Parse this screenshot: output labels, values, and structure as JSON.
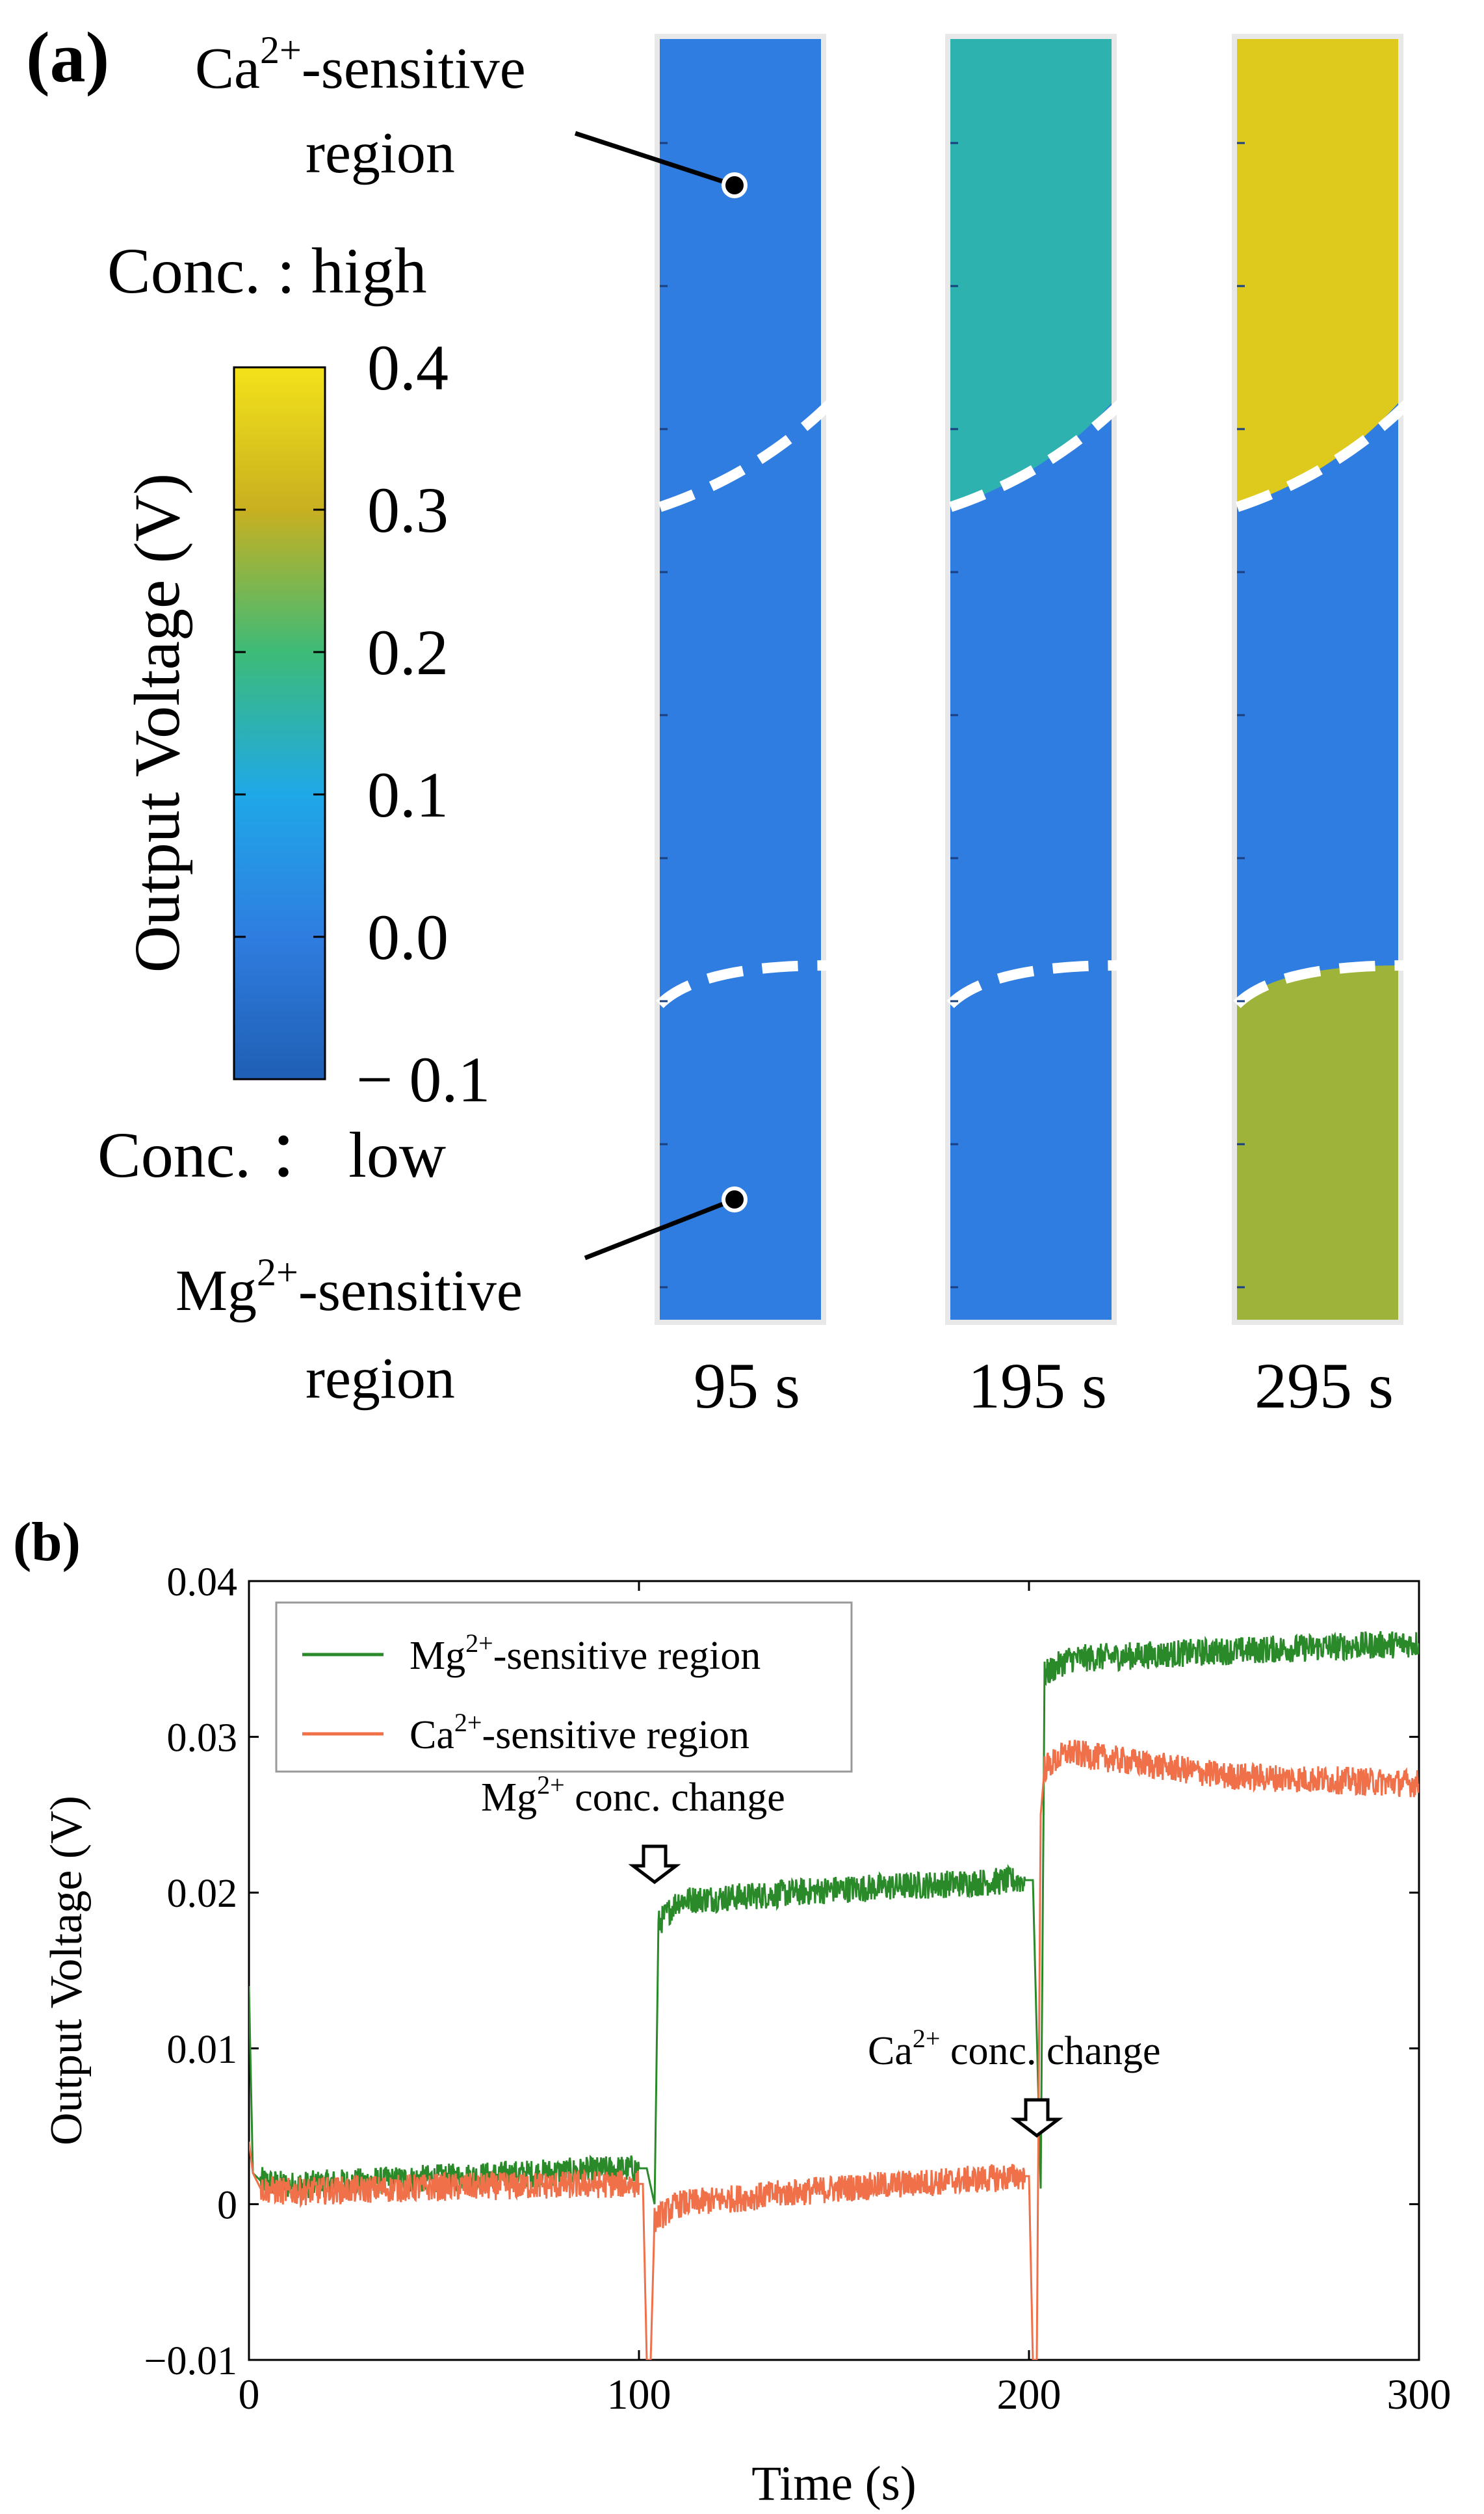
{
  "panel_a": {
    "label": "(a)",
    "ca_region_label": "Ca",
    "ca_region_sup": "2+",
    "ca_region_suffix": "-sensitive",
    "ca_region_line2": "region",
    "mg_region_label": "Mg",
    "mg_region_sup": "2+",
    "mg_region_suffix": "-sensitive",
    "mg_region_line2": "region",
    "conc_high": "Conc. : high",
    "conc_low": "Conc. ： low",
    "colorbar_label": "Output Voltage (V)",
    "colorbar_ticks": [
      "0.4",
      "0.3",
      "0.2",
      "0.1",
      "0.0",
      "− 0.1"
    ],
    "colorbar_range": [
      -0.1,
      0.4
    ],
    "colorbar_colors": [
      "#1f5fb4",
      "#2f7de0",
      "#1fa8e8",
      "#3dbb78",
      "#c8b020",
      "#f3e21a"
    ],
    "frames": [
      {
        "time_label": "95 s",
        "ca_value": 0.0,
        "mg_value": 0.0
      },
      {
        "time_label": "195 s",
        "ca_value": 0.15,
        "mg_value": 0.0
      },
      {
        "time_label": "295 s",
        "ca_value": 0.35,
        "mg_value": 0.27
      }
    ]
  },
  "chart_data": {
    "type": "line",
    "panel_label": "(b)",
    "xlabel": "Time (s)",
    "ylabel": "Output Voltage (V)",
    "xlim": [
      0,
      300
    ],
    "ylim": [
      -0.01,
      0.04
    ],
    "xticks": [
      "0",
      "100",
      "200",
      "300"
    ],
    "yticks": [
      "−0.01",
      "0",
      "0.01",
      "0.02",
      "0.03",
      "0.04"
    ],
    "series": [
      {
        "name": "Mg²⁺-sensitive region",
        "legend_main": "Mg",
        "legend_sup": "2+",
        "legend_suffix": "-sensitive region",
        "color": "#2a8a2a",
        "x": [
          0,
          1,
          3,
          10,
          50,
          100,
          102,
          104,
          105,
          110,
          130,
          150,
          199,
          201,
          203,
          204,
          210,
          250,
          300
        ],
        "values": [
          0.014,
          0.002,
          0.0015,
          0.0012,
          0.0017,
          0.0023,
          0.0023,
          0.0,
          0.018,
          0.0195,
          0.0198,
          0.0202,
          0.0208,
          0.0208,
          0.001,
          0.034,
          0.035,
          0.0355,
          0.036
        ]
      },
      {
        "name": "Ca²⁺-sensitive region",
        "legend_main": "Ca",
        "legend_sup": "2+",
        "legend_suffix": "-sensitive region",
        "color": "#f0704a",
        "x": [
          0,
          1,
          3,
          10,
          50,
          100,
          101,
          102,
          103,
          104,
          110,
          150,
          199,
          200,
          201,
          202,
          203,
          204,
          210,
          250,
          300
        ],
        "values": [
          0.004,
          0.002,
          0.001,
          0.0008,
          0.0011,
          0.0013,
          0.0013,
          -0.01,
          -0.01,
          -0.001,
          0.0,
          0.001,
          0.0018,
          0.0018,
          -0.01,
          -0.01,
          0.025,
          0.028,
          0.029,
          0.0275,
          0.027
        ]
      }
    ],
    "annotations": [
      {
        "main": "Mg",
        "sup": "2+",
        "suffix": " conc. change",
        "x": 104
      },
      {
        "main": "Ca",
        "sup": "2+",
        "suffix": " conc. change",
        "x": 202
      }
    ]
  }
}
